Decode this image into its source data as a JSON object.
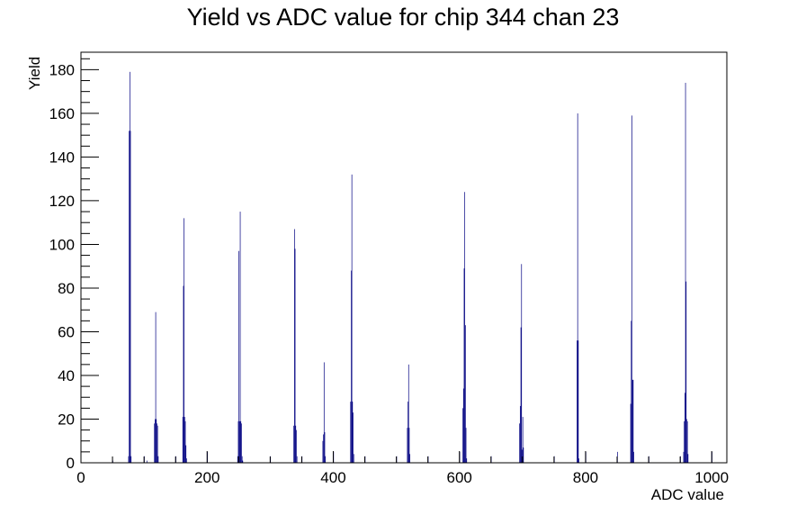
{
  "chart_data": {
    "type": "bar",
    "title": "Yield vs ADC value for chip 344 chan 23",
    "xlabel": "ADC value",
    "ylabel": "Yield",
    "xlim": [
      0,
      1024
    ],
    "ylim": [
      0,
      188
    ],
    "x_ticks": [
      0,
      200,
      400,
      600,
      800,
      1000
    ],
    "y_ticks": [
      0,
      20,
      40,
      60,
      80,
      100,
      120,
      140,
      160,
      180
    ],
    "grid": false,
    "legend": "none",
    "series": [
      {
        "color": "#000080",
        "bins": [
          [
            50,
            1
          ],
          [
            75,
            3
          ],
          [
            76,
            152
          ],
          [
            77,
            179
          ],
          [
            78,
            152
          ],
          [
            79,
            3
          ],
          [
            100,
            3
          ],
          [
            104,
            1
          ],
          [
            116,
            18
          ],
          [
            117,
            20
          ],
          [
            118,
            69
          ],
          [
            119,
            20
          ],
          [
            120,
            18
          ],
          [
            121,
            17
          ],
          [
            122,
            3
          ],
          [
            150,
            3
          ],
          [
            161,
            21
          ],
          [
            162,
            81
          ],
          [
            163,
            112
          ],
          [
            164,
            21
          ],
          [
            165,
            19
          ],
          [
            166,
            8
          ],
          [
            167,
            2
          ],
          [
            200,
            5
          ],
          [
            248,
            3
          ],
          [
            249,
            19
          ],
          [
            250,
            97
          ],
          [
            251,
            19
          ],
          [
            252,
            115
          ],
          [
            253,
            19
          ],
          [
            254,
            18
          ],
          [
            255,
            3
          ],
          [
            256,
            1
          ],
          [
            300,
            3
          ],
          [
            337,
            17
          ],
          [
            338,
            107
          ],
          [
            339,
            98
          ],
          [
            340,
            17
          ],
          [
            341,
            15
          ],
          [
            342,
            3
          ],
          [
            350,
            3
          ],
          [
            383,
            10
          ],
          [
            384,
            13
          ],
          [
            385,
            46
          ],
          [
            386,
            14
          ],
          [
            387,
            3
          ],
          [
            400,
            5
          ],
          [
            427,
            28
          ],
          [
            428,
            88
          ],
          [
            429,
            132
          ],
          [
            430,
            28
          ],
          [
            431,
            23
          ],
          [
            432,
            4
          ],
          [
            450,
            3
          ],
          [
            500,
            3
          ],
          [
            517,
            16
          ],
          [
            518,
            28
          ],
          [
            519,
            45
          ],
          [
            520,
            16
          ],
          [
            521,
            4
          ],
          [
            550,
            3
          ],
          [
            600,
            5
          ],
          [
            605,
            25
          ],
          [
            606,
            34
          ],
          [
            607,
            89
          ],
          [
            608,
            124
          ],
          [
            609,
            63
          ],
          [
            610,
            16
          ],
          [
            611,
            2
          ],
          [
            650,
            3
          ],
          [
            695,
            18
          ],
          [
            696,
            26
          ],
          [
            697,
            62
          ],
          [
            698,
            91
          ],
          [
            699,
            6
          ],
          [
            700,
            21
          ],
          [
            701,
            7
          ],
          [
            750,
            3
          ],
          [
            786,
            56
          ],
          [
            787,
            160
          ],
          [
            788,
            56
          ],
          [
            789,
            2
          ],
          [
            800,
            5
          ],
          [
            850,
            5
          ],
          [
            871,
            27
          ],
          [
            872,
            65
          ],
          [
            873,
            159
          ],
          [
            874,
            38
          ],
          [
            875,
            38
          ],
          [
            876,
            5
          ],
          [
            900,
            3
          ],
          [
            950,
            3
          ],
          [
            955,
            5
          ],
          [
            956,
            19
          ],
          [
            957,
            32
          ],
          [
            958,
            174
          ],
          [
            959,
            83
          ],
          [
            960,
            20
          ],
          [
            961,
            19
          ],
          [
            962,
            4
          ],
          [
            1000,
            5
          ]
        ]
      }
    ]
  }
}
